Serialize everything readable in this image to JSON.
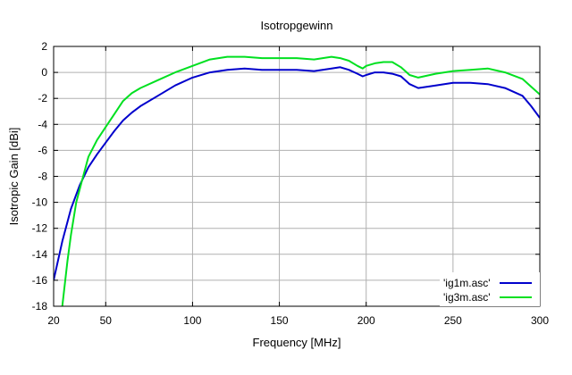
{
  "chart_data": {
    "type": "line",
    "title": "Isotropgewinn",
    "xlabel": "Frequency [MHz]",
    "ylabel": "Isotropic Gain [dBi]",
    "xlim": [
      20,
      300
    ],
    "ylim": [
      -18,
      2
    ],
    "xticks": [
      20,
      50,
      100,
      150,
      200,
      250,
      300
    ],
    "yticks": [
      -18,
      -16,
      -14,
      -12,
      -10,
      -8,
      -6,
      -4,
      -2,
      0,
      2
    ],
    "grid": true,
    "legend_position": "bottom-right",
    "series": [
      {
        "name": "'ig1m.asc'",
        "color": "#0000cc",
        "x": [
          20,
          25,
          30,
          35,
          40,
          45,
          50,
          55,
          60,
          65,
          70,
          80,
          90,
          100,
          110,
          120,
          130,
          140,
          150,
          160,
          170,
          180,
          185,
          190,
          195,
          198,
          200,
          205,
          210,
          215,
          220,
          225,
          230,
          240,
          250,
          260,
          270,
          280,
          290,
          295,
          300
        ],
        "values": [
          -16,
          -13,
          -10.5,
          -8.7,
          -7.3,
          -6.3,
          -5.4,
          -4.5,
          -3.7,
          -3.1,
          -2.6,
          -1.8,
          -1.0,
          -0.4,
          0.0,
          0.2,
          0.3,
          0.2,
          0.2,
          0.2,
          0.1,
          0.3,
          0.4,
          0.2,
          -0.1,
          -0.3,
          -0.2,
          0.0,
          0.0,
          -0.1,
          -0.3,
          -0.9,
          -1.2,
          -1.0,
          -0.8,
          -0.8,
          -0.9,
          -1.2,
          -1.8,
          -2.6,
          -3.5
        ]
      },
      {
        "name": "'ig3m.asc'",
        "color": "#00e020",
        "x": [
          25,
          28,
          30,
          33,
          36,
          40,
          45,
          50,
          55,
          60,
          65,
          70,
          80,
          90,
          100,
          110,
          120,
          130,
          140,
          150,
          160,
          170,
          180,
          185,
          190,
          195,
          198,
          200,
          205,
          210,
          215,
          220,
          225,
          230,
          240,
          250,
          260,
          270,
          280,
          290,
          295,
          300
        ],
        "values": [
          -18,
          -14.5,
          -12.5,
          -10.0,
          -8.5,
          -6.5,
          -5.2,
          -4.2,
          -3.2,
          -2.2,
          -1.6,
          -1.2,
          -0.6,
          0.0,
          0.5,
          1.0,
          1.2,
          1.2,
          1.1,
          1.1,
          1.1,
          1.0,
          1.2,
          1.1,
          0.9,
          0.5,
          0.3,
          0.5,
          0.7,
          0.8,
          0.8,
          0.4,
          -0.2,
          -0.4,
          -0.1,
          0.1,
          0.2,
          0.3,
          0.0,
          -0.5,
          -1.1,
          -1.7
        ]
      }
    ]
  }
}
